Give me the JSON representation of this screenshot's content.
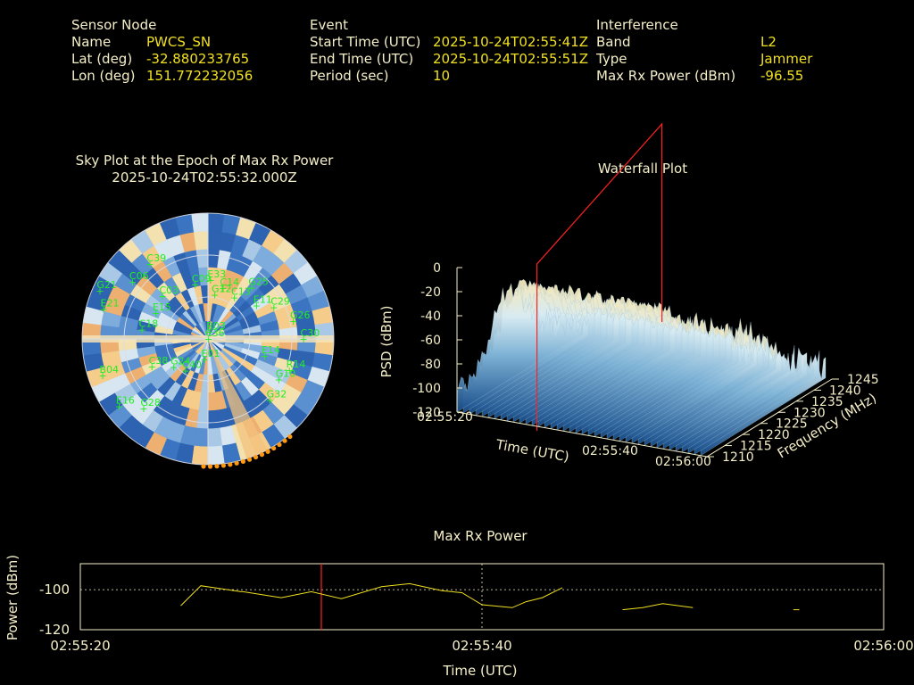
{
  "header": {
    "sensor": {
      "title": "Sensor Node",
      "name_label": "Name",
      "name": "PWCS_SN",
      "lat_label": "Lat (deg)",
      "lat": "-32.880233765",
      "lon_label": "Lon (deg)",
      "lon": "151.772232056"
    },
    "event": {
      "title": "Event",
      "start_label": "Start Time (UTC)",
      "start": "2025-10-24T02:55:41Z",
      "end_label": "End Time (UTC)",
      "end": "2025-10-24T02:55:51Z",
      "period_label": "Period (sec)",
      "period": "10"
    },
    "interference": {
      "title": "Interference",
      "band_label": "Band",
      "band": "L2",
      "type_label": "Type",
      "type": "Jammer",
      "power_label": "Max Rx Power (dBm)",
      "power": "-96.55"
    }
  },
  "colors": {
    "label": "#f5efc8",
    "value": "#f0e020",
    "sat": "#22ee22",
    "marker": "#ff2020",
    "jam": "#ff9a10"
  },
  "chart_data": [
    {
      "type": "polar",
      "title": "Sky Plot at the Epoch of Max Rx Power",
      "subtitle": "2025-10-24T02:55:32.000Z",
      "satellites": [
        {
          "id": "C36",
          "az": 0,
          "el": 90
        },
        {
          "id": "R03",
          "az": 8,
          "el": 85
        },
        {
          "id": "G12",
          "az": 8,
          "el": 58
        },
        {
          "id": "E33",
          "az": 2,
          "el": 48
        },
        {
          "id": "C14",
          "az": 16,
          "el": 52
        },
        {
          "id": "C13",
          "az": 32,
          "el": 55
        },
        {
          "id": "G25",
          "az": 40,
          "el": 42
        },
        {
          "id": "E11",
          "az": 55,
          "el": 48
        },
        {
          "id": "C29",
          "az": 64,
          "el": 38
        },
        {
          "id": "G26",
          "az": 78,
          "el": 28
        },
        {
          "id": "C30",
          "az": 90,
          "el": 22
        },
        {
          "id": "E14",
          "az": 107,
          "el": 48
        },
        {
          "id": "R14",
          "az": 111,
          "el": 28
        },
        {
          "id": "G10",
          "az": 120,
          "el": 32
        },
        {
          "id": "G32",
          "az": 135,
          "el": 28
        },
        {
          "id": "C39",
          "az": 322,
          "el": 22
        },
        {
          "id": "C06",
          "az": 307,
          "el": 22
        },
        {
          "id": "C03",
          "az": 313,
          "el": 45
        },
        {
          "id": "E15",
          "az": 296,
          "el": 48
        },
        {
          "id": "C18",
          "az": 278,
          "el": 42
        },
        {
          "id": "C38",
          "az": 244,
          "el": 45
        },
        {
          "id": "C40",
          "az": 216,
          "el": 62
        },
        {
          "id": "G24",
          "az": 231,
          "el": 58
        },
        {
          "id": "E16",
          "az": 233,
          "el": 10
        },
        {
          "id": "G28",
          "az": 223,
          "el": 22
        },
        {
          "id": "G21",
          "az": 294,
          "el": 5
        },
        {
          "id": "E21",
          "az": 286,
          "el": 12
        },
        {
          "id": "B04",
          "az": 251,
          "el": 10
        },
        {
          "id": "E01",
          "az": 191,
          "el": 75
        },
        {
          "id": "C09",
          "az": 346,
          "el": 50
        }
      ],
      "jammer_direction_az": 157
    },
    {
      "type": "surface",
      "title": "Waterfall Plot",
      "xlabel": "Time (UTC)",
      "ylabel": "Frequency (MHz)",
      "zlabel": "PSD (dBm)",
      "x_ticks": [
        "02:55:20",
        "02:55:40",
        "02:56:00"
      ],
      "y_ticks": [
        "1210",
        "1215",
        "1220",
        "1225",
        "1230",
        "1235",
        "1240",
        "1245"
      ],
      "z_ticks": [
        "0",
        "-20",
        "-40",
        "-60",
        "-80",
        "-100",
        "-120"
      ],
      "zlim": [
        -120,
        0
      ]
    },
    {
      "type": "line",
      "title": "Max Rx Power",
      "xlabel": "Time (UTC)",
      "ylabel": "Power (dBm)",
      "x_ticks": [
        "02:55:20",
        "02:55:40",
        "02:56:00"
      ],
      "y_ticks": [
        "-100",
        "-120"
      ],
      "xlim": [
        0,
        40
      ],
      "ylim": [
        -120,
        -87
      ],
      "marker_t": 12,
      "series": [
        {
          "segments": [
            [
              [
                5,
                -108
              ],
              [
                6,
                -98
              ],
              [
                8,
                -101
              ],
              [
                8.1,
                -101
              ],
              [
                10,
                -104
              ],
              [
                11.5,
                -101
              ],
              [
                13,
                -104.5
              ],
              [
                15,
                -98.5
              ],
              [
                16.4,
                -97
              ],
              [
                18,
                -100.5
              ],
              [
                19,
                -101.5
              ],
              [
                20,
                -107.5
              ],
              [
                21.5,
                -109
              ],
              [
                22.2,
                -106
              ],
              [
                23,
                -104
              ],
              [
                24,
                -99
              ]
            ],
            [
              [
                27,
                -110
              ],
              [
                28,
                -109
              ],
              [
                29,
                -107
              ],
              [
                30.5,
                -109
              ]
            ],
            [
              [
                35.5,
                -110
              ],
              [
                35.8,
                -110
              ]
            ]
          ]
        }
      ]
    }
  ]
}
